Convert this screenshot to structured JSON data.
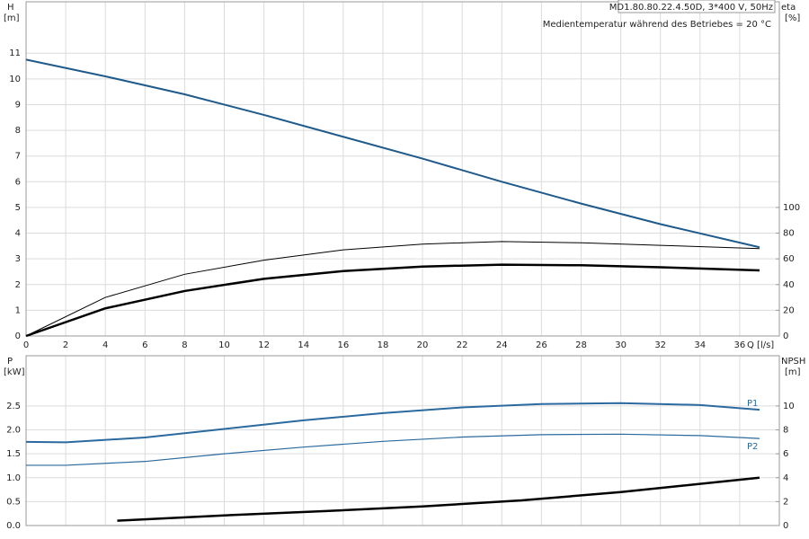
{
  "chart_data": [
    {
      "type": "line",
      "title": "MD1.80.80.22.4.50D, 3*400 V, 50Hz",
      "subtitle": "Medientemperatur während des Betriebes = 20 °C",
      "ylabel": "H",
      "yunit": "[m]",
      "y2label": "eta",
      "y2unit": "[%]",
      "xlabel": "Q [l/s]",
      "xlim": [
        0,
        38
      ],
      "xticks": [
        0,
        2,
        4,
        6,
        8,
        10,
        12,
        14,
        16,
        18,
        20,
        22,
        24,
        26,
        28,
        30,
        32,
        34,
        36
      ],
      "ylim": [
        0,
        13
      ],
      "yticks": [
        0,
        1,
        2,
        3,
        4,
        5,
        6,
        7,
        8,
        9,
        10,
        11
      ],
      "y2lim": [
        0,
        260
      ],
      "y2ticks": [
        0,
        20,
        40,
        60,
        80,
        100
      ],
      "grid": true,
      "series": [
        {
          "color": "#1f5a8a",
          "width": 2,
          "x": [
            0,
            4,
            8,
            12,
            16,
            20,
            24,
            28,
            32,
            37
          ],
          "values": [
            10.75,
            10.1,
            9.4,
            8.6,
            7.75,
            6.9,
            6.0,
            5.15,
            4.35,
            3.45
          ]
        },
        {
          "color": "#000000",
          "width": 1,
          "axis": "y2",
          "x": [
            0,
            4,
            8,
            12,
            16,
            20,
            24,
            28,
            32,
            37
          ],
          "values": [
            0,
            30,
            48,
            59,
            67,
            71.5,
            73.5,
            72.5,
            70.5,
            68
          ]
        },
        {
          "color": "#000000",
          "width": 2.5,
          "axis": "y2",
          "x": [
            0,
            4,
            8,
            12,
            16,
            20,
            24,
            28,
            32,
            37
          ],
          "values": [
            0,
            21.5,
            35,
            44.5,
            50.5,
            54,
            55.5,
            55,
            53.5,
            51
          ]
        }
      ]
    },
    {
      "type": "line",
      "ylabel": "P",
      "yunit": "[kW]",
      "y2label": "NPSH",
      "y2unit": "[m]",
      "xlim": [
        0,
        38
      ],
      "xticks": [
        0,
        2,
        4,
        6,
        8,
        10,
        12,
        14,
        16,
        18,
        20,
        22,
        24,
        26,
        28,
        30,
        32,
        34,
        36
      ],
      "ylim": [
        0,
        3.55
      ],
      "yticks": [
        {
          "value": 0,
          "label": "0.0"
        },
        {
          "value": 0.5,
          "label": "0.5"
        },
        {
          "value": 1,
          "label": "1.0"
        },
        {
          "value": 1.5,
          "label": "1.5"
        },
        {
          "value": 2,
          "label": "2.0"
        },
        {
          "value": 2.5,
          "label": "2.5"
        }
      ],
      "y2lim": [
        0,
        14.2
      ],
      "y2ticks": [
        0,
        2,
        4,
        6,
        8,
        10
      ],
      "grid": true,
      "series": [
        {
          "name": "P1",
          "color": "#2a6a9e",
          "width": 2,
          "x": [
            0,
            2,
            6,
            10,
            14,
            18,
            22,
            26,
            30,
            34,
            37
          ],
          "values": [
            1.75,
            1.74,
            1.84,
            2.02,
            2.2,
            2.35,
            2.47,
            2.54,
            2.56,
            2.52,
            2.42
          ]
        },
        {
          "name": "P2",
          "color": "#2a6a9e",
          "width": 1.2,
          "x": [
            0,
            2,
            6,
            10,
            14,
            18,
            22,
            26,
            30,
            34,
            37
          ],
          "values": [
            1.26,
            1.26,
            1.34,
            1.5,
            1.64,
            1.76,
            1.85,
            1.9,
            1.91,
            1.88,
            1.82
          ]
        },
        {
          "color": "#000000",
          "width": 2.5,
          "axis": "y2",
          "x": [
            4.6,
            10,
            15,
            20,
            25,
            30,
            37
          ],
          "values": [
            0.4,
            0.85,
            1.2,
            1.6,
            2.1,
            2.8,
            4.0
          ]
        }
      ]
    }
  ]
}
